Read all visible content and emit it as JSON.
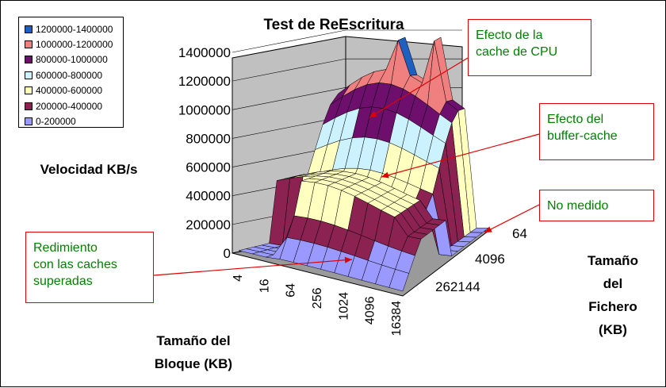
{
  "chart_data": {
    "type": "3d-surface",
    "title": "Test de ReEscritura",
    "zlabel": "Velocidad KB/s",
    "xlabel": [
      "Tamaño del",
      "Bloque (KB)"
    ],
    "ylabel": [
      "Tamaño",
      "del",
      "Fichero",
      "(KB)"
    ],
    "zlim": [
      0,
      1400000
    ],
    "z_ticks": [
      "0",
      "200000",
      "400000",
      "600000",
      "800000",
      "1000000",
      "1200000",
      "1400000"
    ],
    "block_size_ticks": [
      "4",
      "16",
      "64",
      "256",
      "1024",
      "4096",
      "16384"
    ],
    "file_size_ticks": [
      "64",
      "4096",
      "262144"
    ],
    "legend": [
      {
        "label": "1200000-1400000",
        "color": "#1f5fbf"
      },
      {
        "label": "1000000-1200000",
        "color": "#f08080"
      },
      {
        "label": "800000-1000000",
        "color": "#6e0f6e"
      },
      {
        "label": "600000-800000",
        "color": "#ccf2ff"
      },
      {
        "label": "400000-600000",
        "color": "#ffffc0"
      },
      {
        "label": "200000-400000",
        "color": "#8b2252"
      },
      {
        "label": "0-200000",
        "color": "#9999ff"
      }
    ],
    "legend_position": "top-left",
    "grid": true,
    "approx_profile_by_file_size_kb": {
      "file_sizes": [
        64,
        4096,
        262144
      ],
      "peak_block_kb": 64,
      "peak_value": [
        1300000,
        600000,
        30000
      ]
    }
  },
  "annotations": [
    {
      "id": "cpu",
      "lines": [
        "Efecto de la",
        "cache de CPU"
      ]
    },
    {
      "id": "buffer",
      "lines": [
        "Efecto del",
        "buffer-cache"
      ]
    },
    {
      "id": "nomedido",
      "lines": [
        "No medido"
      ]
    },
    {
      "id": "rendimiento",
      "lines": [
        "Redimiento",
        "con las caches",
        "superadas"
      ]
    }
  ],
  "colors": {
    "wall": "#c0c0c0",
    "annotation_border": "#e00000",
    "annotation_text": "#008000"
  }
}
